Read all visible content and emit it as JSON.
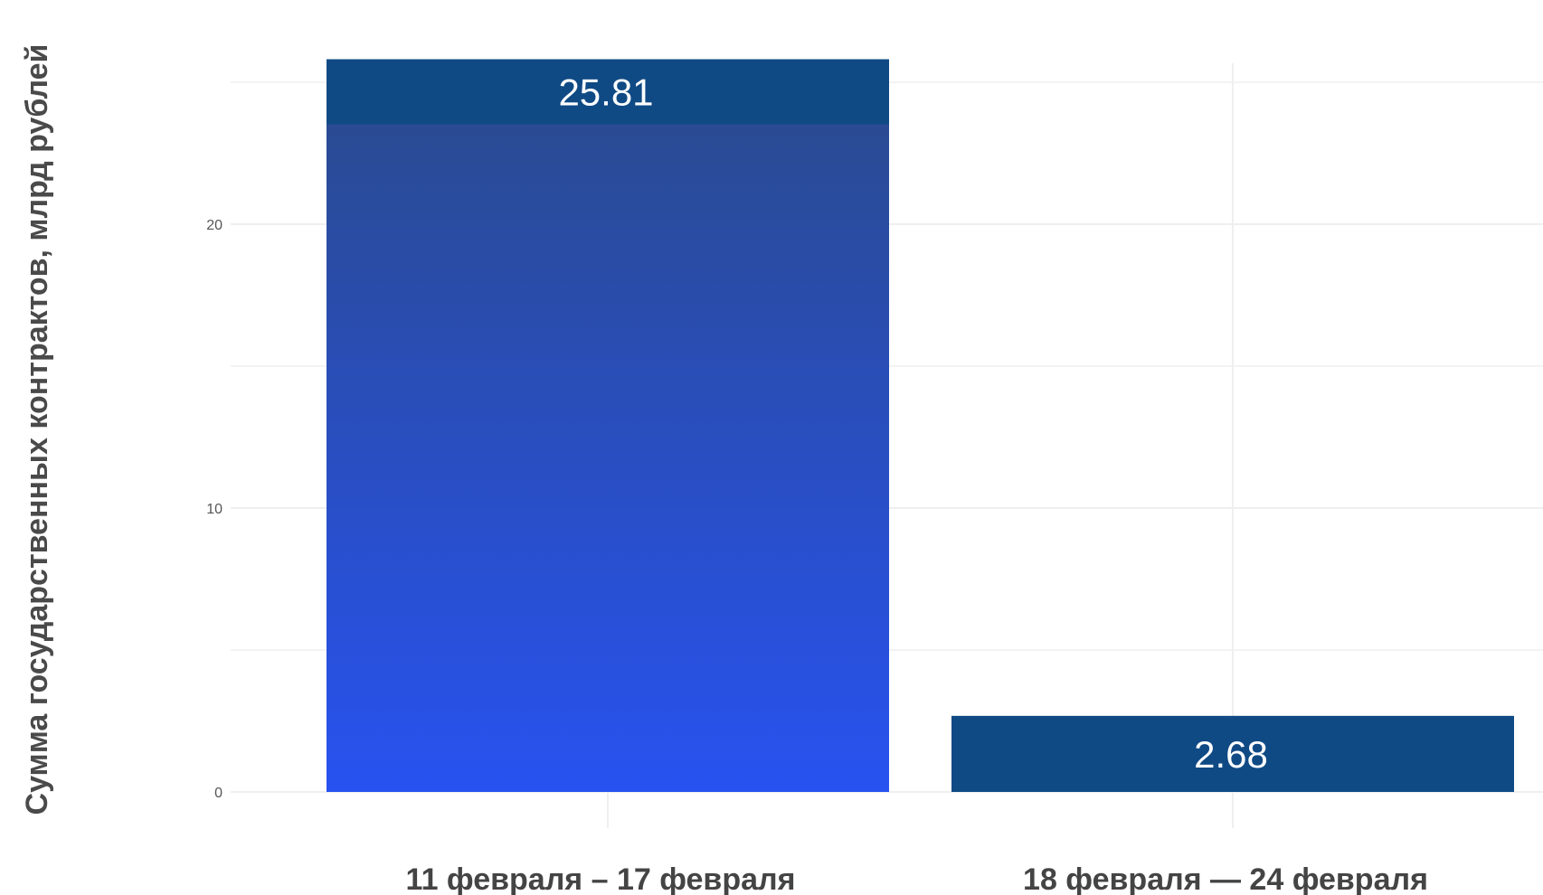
{
  "chart_data": {
    "type": "bar",
    "title": "",
    "xlabel": "",
    "ylabel": "Сумма государственных контрактов, млрд рублей",
    "categories": [
      "11 февраля – 17 февраля",
      "18 февраля — 24 февраля"
    ],
    "values": [
      25.81,
      2.68
    ],
    "data_labels": [
      "25.81",
      "2.68"
    ],
    "y_ticks": [
      0,
      10,
      20
    ],
    "y_tick_labels": [
      "0",
      "10",
      "20"
    ],
    "ylim": [
      0,
      27.5
    ],
    "grid": true,
    "legend": "none",
    "colors": {
      "bar_gradient_top": "#2a4a8a",
      "bar_gradient_bottom": "#2852f0",
      "label_band": "#104a85",
      "bar_solid": "#104a85",
      "grid": "#efefef"
    }
  }
}
